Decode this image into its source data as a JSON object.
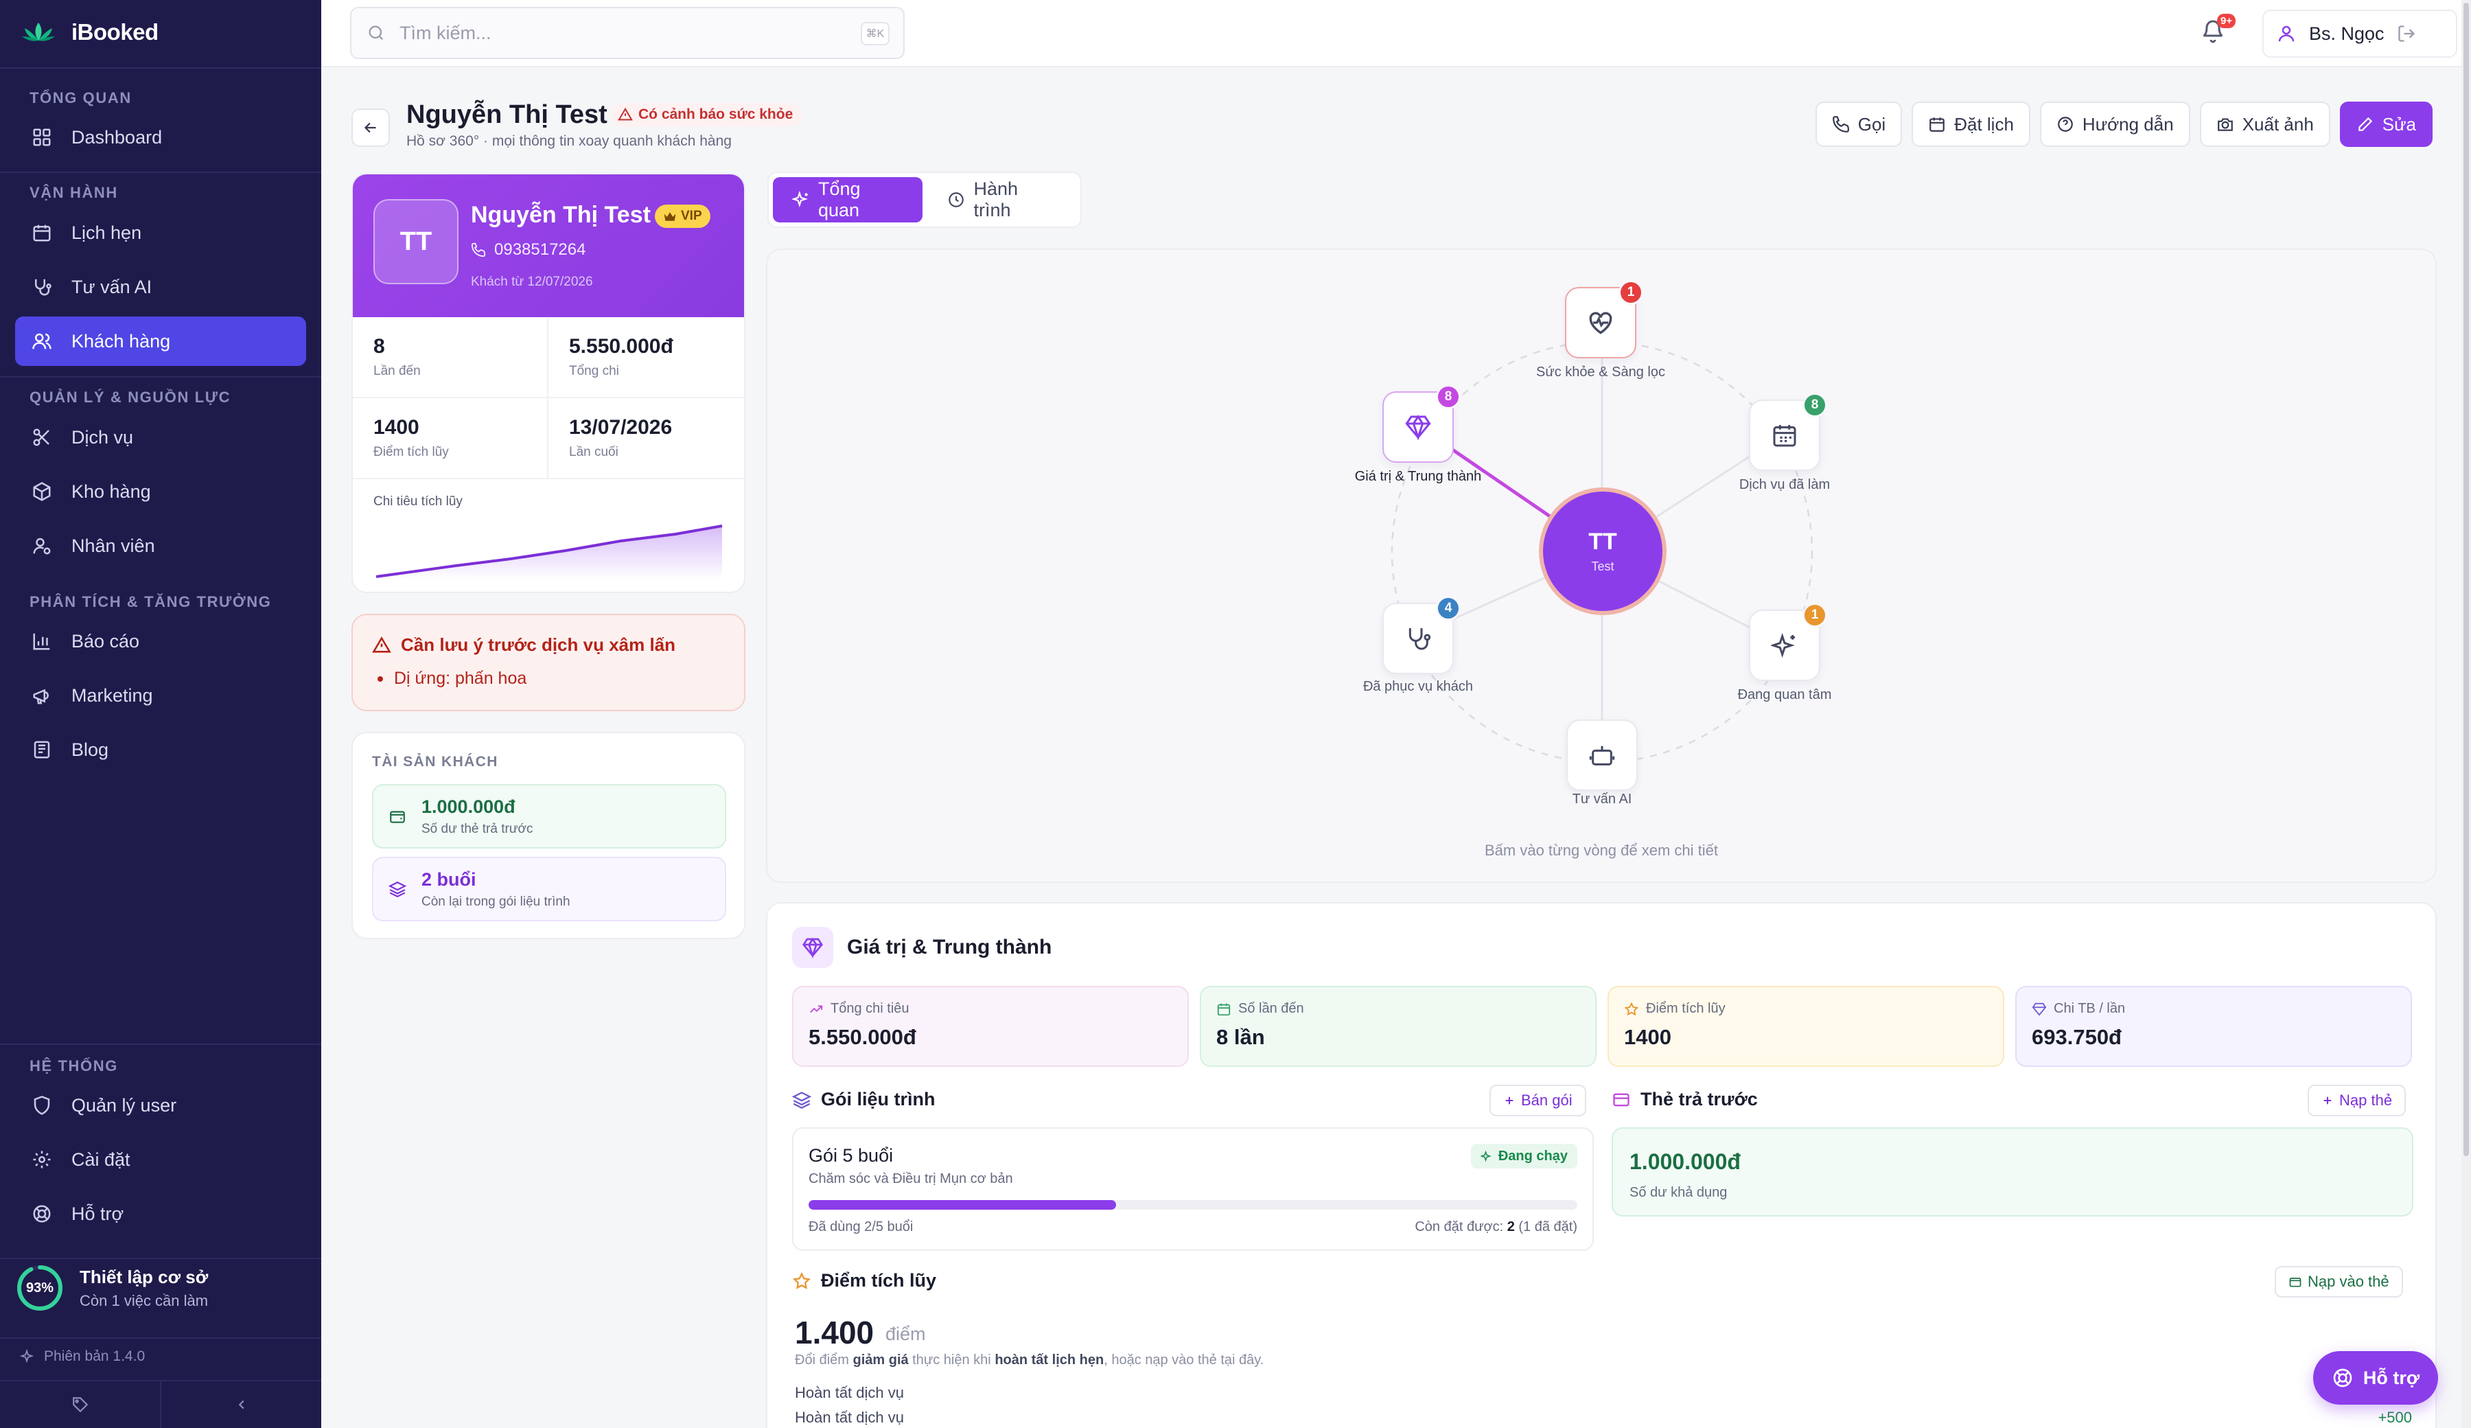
{
  "app": {
    "name": "iBooked",
    "version": "Phiên bản 1.4.0"
  },
  "sidebar": {
    "sections": [
      {
        "label": "TỔNG QUAN",
        "items": [
          {
            "label": "Dashboard",
            "icon": "dashboard-icon"
          }
        ]
      },
      {
        "label": "VẬN HÀNH",
        "items": [
          {
            "label": "Lịch hẹn",
            "icon": "calendar-icon"
          },
          {
            "label": "Tư vấn AI",
            "icon": "stethoscope-icon"
          },
          {
            "label": "Khách hàng",
            "icon": "users-icon",
            "active": true
          }
        ]
      },
      {
        "label": "QUẢN LÝ & NGUỒN LỰC",
        "items": [
          {
            "label": "Dịch vụ",
            "icon": "scissors-icon"
          },
          {
            "label": "Kho hàng",
            "icon": "box-icon"
          },
          {
            "label": "Nhân viên",
            "icon": "user-gear-icon"
          }
        ]
      },
      {
        "label": "PHÂN TÍCH & TĂNG TRƯỞNG",
        "items": [
          {
            "label": "Báo cáo",
            "icon": "bar-chart-icon"
          },
          {
            "label": "Marketing",
            "icon": "megaphone-icon"
          },
          {
            "label": "Blog",
            "icon": "newspaper-icon"
          }
        ]
      },
      {
        "label": "HỆ THỐNG",
        "items": [
          {
            "label": "Quản lý user",
            "icon": "shield-icon"
          },
          {
            "label": "Cài đặt",
            "icon": "gear-icon"
          },
          {
            "label": "Hỗ trợ",
            "icon": "lifebuoy-icon"
          }
        ]
      }
    ],
    "setup": {
      "percent": "93%",
      "percent_value": 0.93,
      "title": "Thiết lập cơ sở",
      "subtitle": "Còn 1 việc cần làm"
    }
  },
  "topbar": {
    "search_placeholder": "Tìm kiếm...",
    "shortcut": "⌘K",
    "notif_badge": "9+",
    "user_name": "Bs. Ngọc"
  },
  "header": {
    "title": "Nguyễn Thị Test",
    "warning": "Có cảnh báo sức khỏe",
    "subtitle": "Hồ sơ 360° · mọi thông tin xoay quanh khách hàng",
    "actions": {
      "call": "Gọi",
      "book": "Đặt lịch",
      "guide": "Hướng dẫn",
      "export": "Xuất ảnh",
      "edit": "Sửa"
    }
  },
  "profile": {
    "initials": "TT",
    "name": "Nguyễn Thị Test",
    "vip": "VIP",
    "phone": "0938517264",
    "since": "Khách từ 12/07/2026",
    "stats": [
      {
        "value": "8",
        "label": "Lần đến"
      },
      {
        "value": "5.550.000đ",
        "label": "Tổng chi"
      },
      {
        "value": "1400",
        "label": "Điểm tích lũy"
      },
      {
        "value": "13/07/2026",
        "label": "Lần cuối"
      }
    ],
    "spark_label": "Chi tiêu tích lũy"
  },
  "alert": {
    "title": "Cần lưu ý trước dịch vụ xâm lấn",
    "item": "Dị ứng: phấn hoa"
  },
  "assets": {
    "heading": "TÀI SẢN KHÁCH",
    "prepaid": {
      "value": "1.000.000đ",
      "label": "Số dư thẻ trả trước"
    },
    "sessions": {
      "value": "2 buổi",
      "label": "Còn lại trong gói liệu trình"
    }
  },
  "tabs": {
    "overview": "Tổng quan",
    "journey": "Hành trình"
  },
  "orbit": {
    "center_initials": "TT",
    "center_name": "Test",
    "hint": "Bấm vào từng vòng để xem chi tiết",
    "nodes": {
      "health": {
        "label": "Sức khỏe & Sàng lọc",
        "badge": "1"
      },
      "services": {
        "label": "Dịch vụ đã làm",
        "badge": "8"
      },
      "interest": {
        "label": "Đang quan tâm",
        "badge": "1"
      },
      "ai": {
        "label": "Tư vấn AI"
      },
      "served": {
        "label": "Đã phục vụ khách",
        "badge": "4"
      },
      "loyalty": {
        "label": "Giá trị & Trung thành",
        "badge": "8"
      }
    }
  },
  "loyalty": {
    "title": "Giá trị & Trung thành",
    "kpis": [
      {
        "label": "Tổng chi tiêu",
        "value": "5.550.000đ"
      },
      {
        "label": "Số lần đến",
        "value": "8 lần"
      },
      {
        "label": "Điểm tích lũy",
        "value": "1400"
      },
      {
        "label": "Chi TB / lần",
        "value": "693.750đ"
      }
    ],
    "package": {
      "section": "Gói liệu trình",
      "sell_btn": "Bán gói",
      "name": "Gói 5 buổi",
      "desc": "Chăm sóc và Điều trị Mụn cơ bản",
      "status": "Đang chạy",
      "progress": 0.4,
      "used": "Đã dùng 2/5 buổi",
      "remaining_prefix": "Còn đặt được: ",
      "remaining_value": "2",
      "remaining_suffix": " (1 đã đặt)"
    },
    "prepaid": {
      "section": "Thẻ trả trước",
      "topup_btn": "Nạp thẻ",
      "value": "1.000.000đ",
      "label": "Số dư khả dụng"
    },
    "points": {
      "section": "Điểm tích lũy",
      "topup_btn": "Nạp vào thẻ",
      "value": "1.400",
      "unit": "điểm",
      "note_1": "Đổi điểm ",
      "note_b1": "giảm giá",
      "note_2": " thực hiện khi ",
      "note_b2": "hoàn tất lịch hẹn",
      "note_3": ", hoặc nạp vào thẻ tại đây.",
      "history": [
        {
          "label": "Hoàn tất dịch vụ",
          "value": ""
        },
        {
          "label": "Hoàn tất dịch vụ",
          "value": "+500"
        }
      ]
    }
  },
  "help_fab": "Hỗ trợ",
  "colors": {
    "sidebar_bg": "#1e1b4b",
    "active": "#4f46e5",
    "accent": "#8b3dea",
    "danger": "#ef4444"
  }
}
